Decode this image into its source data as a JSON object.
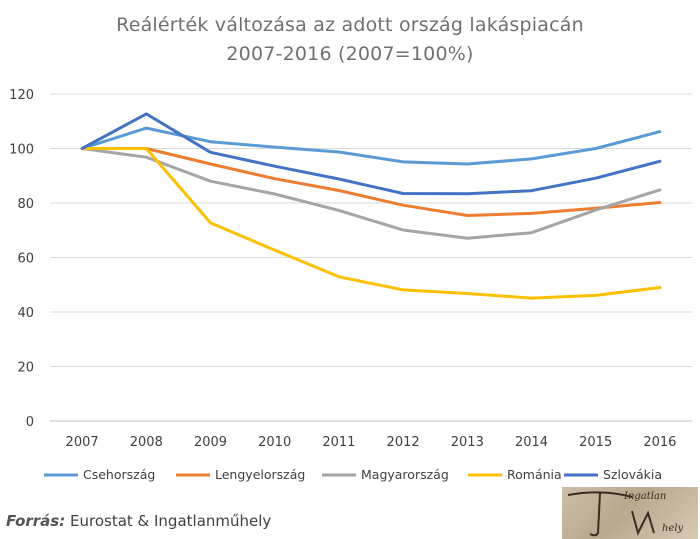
{
  "title_line1": "Reálérték változása az adott ország lakáspiacán",
  "title_line2": "2007-2016 (2007=100%)",
  "source_label": "Forrás:",
  "source_text": " Eurostat & Ingatlanműhely",
  "logo_text": "Ingatlan műhely",
  "chart_data": {
    "type": "line",
    "title": "Reálérték változása az adott ország lakáspiacán 2007-2016 (2007=100%)",
    "categories": [
      "2007",
      "2008",
      "2009",
      "2010",
      "2011",
      "2012",
      "2013",
      "2014",
      "2015",
      "2016"
    ],
    "ylim": [
      0,
      120
    ],
    "yticks": [
      0,
      20,
      40,
      60,
      80,
      100,
      120
    ],
    "grid": true,
    "legend": "bottom",
    "series": [
      {
        "name": "Csehország",
        "color": "#5B9BD5",
        "values": [
          100,
          107.5,
          102.5,
          100.5,
          98.7,
          95.1,
          94.3,
          96.2,
          100,
          106.2
        ]
      },
      {
        "name": "Lengyelország",
        "color": "#ED7D31",
        "values": [
          100,
          100,
          94.3,
          88.9,
          84.6,
          79.2,
          75.4,
          76.2,
          78.1,
          80.2
        ]
      },
      {
        "name": "Magyarország",
        "color": "#A5A5A5",
        "values": [
          100,
          96.8,
          88,
          83.3,
          77.3,
          70.1,
          67.1,
          69.1,
          77.4,
          84.8
        ]
      },
      {
        "name": "Románia",
        "color": "#FFC000",
        "values": [
          100,
          100,
          72.7,
          62.7,
          52.9,
          48.1,
          46.8,
          45.1,
          46.1,
          49
        ]
      },
      {
        "name": "Szlovákia",
        "color": "#4472C4",
        "values": [
          100,
          112.7,
          98.6,
          93.5,
          88.8,
          83.5,
          83.4,
          84.5,
          89.1,
          95.3
        ]
      }
    ]
  }
}
